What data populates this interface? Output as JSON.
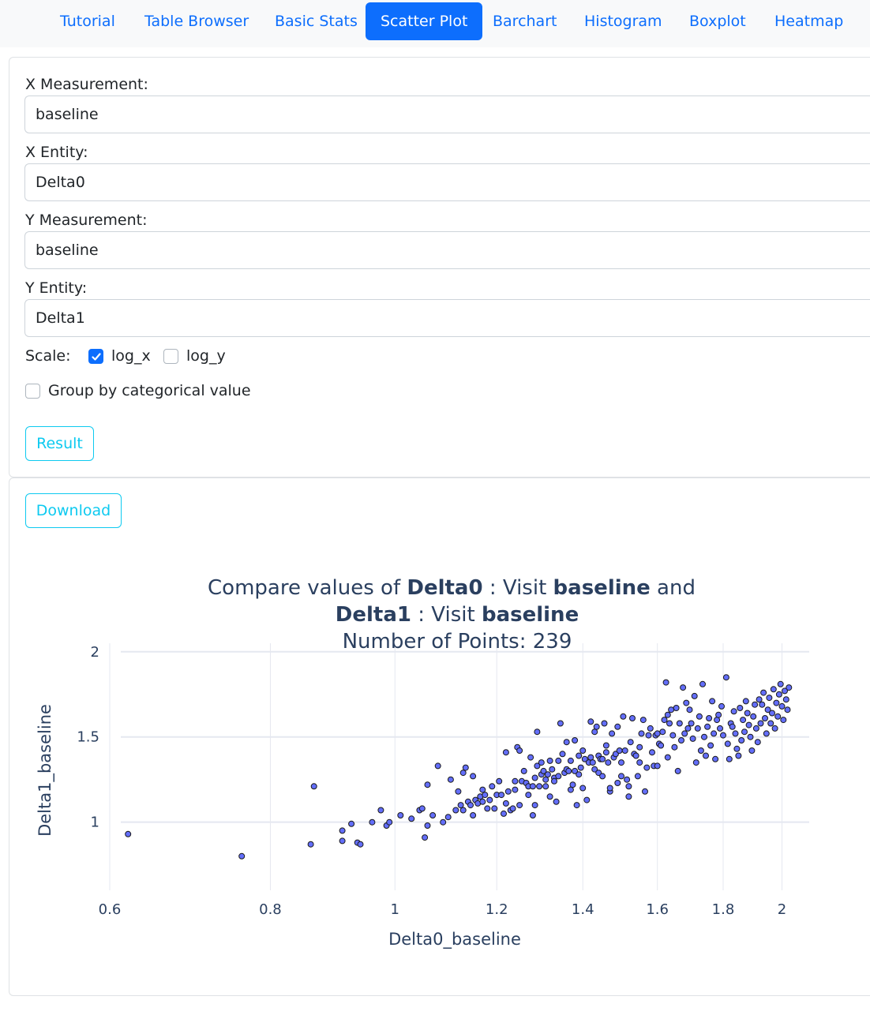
{
  "nav": {
    "tabs": [
      {
        "label": "Tutorial"
      },
      {
        "label": "Table Browser"
      },
      {
        "label": "Basic Stats"
      },
      {
        "label": "Scatter Plot"
      },
      {
        "label": "Barchart"
      },
      {
        "label": "Histogram"
      },
      {
        "label": "Boxplot"
      },
      {
        "label": "Heatmap"
      }
    ],
    "active": "Scatter Plot"
  },
  "form": {
    "x_measurement": {
      "label": "X Measurement:",
      "value": "baseline"
    },
    "x_entity": {
      "label": "X Entity:",
      "value": "Delta0"
    },
    "y_measurement": {
      "label": "Y Measurement:",
      "value": "baseline"
    },
    "y_entity": {
      "label": "Y Entity:",
      "value": "Delta1"
    },
    "scale": {
      "label": "Scale:",
      "log_x": {
        "label": "log_x",
        "checked": true
      },
      "log_y": {
        "label": "log_y",
        "checked": false
      }
    },
    "group_by": {
      "label": "Group by categorical value",
      "checked": false
    },
    "result_button": "Result"
  },
  "plot_panel": {
    "download_button": "Download"
  },
  "chart_data": {
    "type": "scatter",
    "title": {
      "line1_prefix": "Compare values of ",
      "line1_entity": "Delta0",
      "line1_mid": " : Visit ",
      "line1_visit": "baseline",
      "line1_suffix": " and",
      "line2_entity": "Delta1",
      "line2_mid": " : Visit ",
      "line2_visit": "baseline",
      "line3": "Number of Points: 239"
    },
    "xlabel": "Delta0_baseline",
    "ylabel": "Delta1_baseline",
    "x_scale": "log",
    "y_scale": "linear",
    "xlim": [
      0.6,
      2.1
    ],
    "ylim": [
      0.6,
      2.05
    ],
    "x_ticks": [
      0.6,
      0.8,
      1,
      1.2,
      1.4,
      1.6,
      1.8,
      2
    ],
    "x_tick_labels": [
      "0.6",
      "0.8",
      "1",
      "1.2",
      "1.4",
      "1.6",
      "1.8",
      "2"
    ],
    "y_ticks": [
      1,
      1.5,
      2
    ],
    "y_tick_labels": [
      "1",
      "1.5",
      "2"
    ],
    "grid": true,
    "marker_color": "#636efa",
    "marker_edge": "#1a1a1a",
    "points": [
      [
        0.62,
        0.93
      ],
      [
        0.76,
        0.8
      ],
      [
        0.86,
        0.87
      ],
      [
        0.865,
        1.21
      ],
      [
        0.91,
        0.89
      ],
      [
        0.91,
        0.95
      ],
      [
        0.925,
        0.99
      ],
      [
        0.935,
        0.88
      ],
      [
        0.94,
        0.87
      ],
      [
        0.96,
        1.0
      ],
      [
        0.975,
        1.07
      ],
      [
        0.985,
        0.98
      ],
      [
        0.99,
        1.0
      ],
      [
        1.01,
        1.04
      ],
      [
        1.03,
        1.02
      ],
      [
        1.045,
        1.07
      ],
      [
        1.05,
        1.08
      ],
      [
        1.055,
        0.91
      ],
      [
        1.06,
        1.22
      ],
      [
        1.06,
        0.98
      ],
      [
        1.07,
        1.04
      ],
      [
        1.08,
        1.33
      ],
      [
        1.09,
        1.0
      ],
      [
        1.1,
        1.03
      ],
      [
        1.105,
        1.25
      ],
      [
        1.115,
        1.07
      ],
      [
        1.12,
        1.18
      ],
      [
        1.125,
        1.1
      ],
      [
        1.13,
        1.07
      ],
      [
        1.13,
        1.29
      ],
      [
        1.135,
        1.32
      ],
      [
        1.14,
        1.12
      ],
      [
        1.145,
        1.1
      ],
      [
        1.15,
        1.27
      ],
      [
        1.15,
        1.04
      ],
      [
        1.155,
        1.13
      ],
      [
        1.16,
        1.11
      ],
      [
        1.165,
        1.15
      ],
      [
        1.17,
        1.12
      ],
      [
        1.17,
        1.19
      ],
      [
        1.175,
        1.16
      ],
      [
        1.18,
        1.08
      ],
      [
        1.185,
        1.13
      ],
      [
        1.19,
        1.21
      ],
      [
        1.195,
        1.08
      ],
      [
        1.2,
        1.16
      ],
      [
        1.205,
        1.24
      ],
      [
        1.21,
        1.16
      ],
      [
        1.215,
        1.05
      ],
      [
        1.22,
        1.11
      ],
      [
        1.22,
        1.41
      ],
      [
        1.225,
        1.18
      ],
      [
        1.23,
        1.07
      ],
      [
        1.235,
        1.08
      ],
      [
        1.24,
        1.19
      ],
      [
        1.24,
        1.24
      ],
      [
        1.245,
        1.44
      ],
      [
        1.25,
        1.42
      ],
      [
        1.25,
        1.1
      ],
      [
        1.255,
        1.24
      ],
      [
        1.26,
        1.3
      ],
      [
        1.265,
        1.23
      ],
      [
        1.27,
        1.21
      ],
      [
        1.27,
        1.16
      ],
      [
        1.275,
        1.38
      ],
      [
        1.28,
        1.04
      ],
      [
        1.28,
        1.21
      ],
      [
        1.285,
        1.26
      ],
      [
        1.285,
        1.1
      ],
      [
        1.29,
        1.33
      ],
      [
        1.29,
        1.53
      ],
      [
        1.295,
        1.21
      ],
      [
        1.3,
        1.35
      ],
      [
        1.3,
        1.28
      ],
      [
        1.305,
        1.3
      ],
      [
        1.31,
        1.21
      ],
      [
        1.31,
        1.25
      ],
      [
        1.315,
        1.28
      ],
      [
        1.32,
        1.15
      ],
      [
        1.32,
        1.36
      ],
      [
        1.325,
        1.31
      ],
      [
        1.33,
        1.26
      ],
      [
        1.33,
        1.24
      ],
      [
        1.335,
        1.12
      ],
      [
        1.34,
        1.36
      ],
      [
        1.34,
        1.27
      ],
      [
        1.345,
        1.58
      ],
      [
        1.35,
        1.4
      ],
      [
        1.355,
        1.29
      ],
      [
        1.36,
        1.31
      ],
      [
        1.36,
        1.47
      ],
      [
        1.365,
        1.3
      ],
      [
        1.37,
        1.19
      ],
      [
        1.37,
        1.36
      ],
      [
        1.375,
        1.22
      ],
      [
        1.38,
        1.48
      ],
      [
        1.38,
        1.3
      ],
      [
        1.385,
        1.1
      ],
      [
        1.39,
        1.39
      ],
      [
        1.39,
        1.28
      ],
      [
        1.395,
        1.32
      ],
      [
        1.4,
        1.2
      ],
      [
        1.4,
        1.42
      ],
      [
        1.405,
        1.37
      ],
      [
        1.41,
        1.13
      ],
      [
        1.415,
        1.35
      ],
      [
        1.42,
        1.59
      ],
      [
        1.42,
        1.38
      ],
      [
        1.425,
        1.35
      ],
      [
        1.43,
        1.53
      ],
      [
        1.43,
        1.31
      ],
      [
        1.435,
        1.56
      ],
      [
        1.44,
        1.39
      ],
      [
        1.44,
        1.29
      ],
      [
        1.445,
        1.37
      ],
      [
        1.45,
        1.27
      ],
      [
        1.45,
        1.37
      ],
      [
        1.455,
        1.58
      ],
      [
        1.46,
        1.41
      ],
      [
        1.46,
        1.45
      ],
      [
        1.465,
        1.35
      ],
      [
        1.47,
        1.18
      ],
      [
        1.47,
        1.2
      ],
      [
        1.475,
        1.52
      ],
      [
        1.48,
        1.38
      ],
      [
        1.485,
        1.4
      ],
      [
        1.49,
        1.56
      ],
      [
        1.49,
        1.23
      ],
      [
        1.495,
        1.42
      ],
      [
        1.5,
        1.35
      ],
      [
        1.5,
        1.27
      ],
      [
        1.505,
        1.62
      ],
      [
        1.51,
        1.42
      ],
      [
        1.515,
        1.25
      ],
      [
        1.52,
        1.21
      ],
      [
        1.52,
        1.15
      ],
      [
        1.525,
        1.47
      ],
      [
        1.53,
        1.61
      ],
      [
        1.535,
        1.4
      ],
      [
        1.54,
        1.39
      ],
      [
        1.545,
        1.27
      ],
      [
        1.55,
        1.35
      ],
      [
        1.55,
        1.44
      ],
      [
        1.555,
        1.52
      ],
      [
        1.56,
        1.6
      ],
      [
        1.565,
        1.18
      ],
      [
        1.57,
        1.32
      ],
      [
        1.575,
        1.51
      ],
      [
        1.58,
        1.55
      ],
      [
        1.585,
        1.41
      ],
      [
        1.59,
        1.33
      ],
      [
        1.595,
        1.51
      ],
      [
        1.6,
        1.33
      ],
      [
        1.6,
        1.52
      ],
      [
        1.605,
        1.46
      ],
      [
        1.61,
        1.45
      ],
      [
        1.615,
        1.53
      ],
      [
        1.62,
        1.6
      ],
      [
        1.625,
        1.82
      ],
      [
        1.63,
        1.63
      ],
      [
        1.63,
        1.38
      ],
      [
        1.635,
        1.58
      ],
      [
        1.64,
        1.66
      ],
      [
        1.645,
        1.51
      ],
      [
        1.65,
        1.44
      ],
      [
        1.655,
        1.67
      ],
      [
        1.66,
        1.3
      ],
      [
        1.665,
        1.58
      ],
      [
        1.67,
        1.48
      ],
      [
        1.675,
        1.79
      ],
      [
        1.68,
        1.52
      ],
      [
        1.685,
        1.7
      ],
      [
        1.69,
        1.55
      ],
      [
        1.695,
        1.66
      ],
      [
        1.7,
        1.58
      ],
      [
        1.705,
        1.49
      ],
      [
        1.71,
        1.74
      ],
      [
        1.715,
        1.35
      ],
      [
        1.72,
        1.55
      ],
      [
        1.725,
        1.62
      ],
      [
        1.73,
        1.42
      ],
      [
        1.735,
        1.81
      ],
      [
        1.74,
        1.5
      ],
      [
        1.745,
        1.39
      ],
      [
        1.75,
        1.56
      ],
      [
        1.755,
        1.61
      ],
      [
        1.76,
        1.45
      ],
      [
        1.765,
        1.71
      ],
      [
        1.77,
        1.52
      ],
      [
        1.775,
        1.37
      ],
      [
        1.78,
        1.6
      ],
      [
        1.785,
        1.63
      ],
      [
        1.79,
        1.55
      ],
      [
        1.795,
        1.68
      ],
      [
        1.8,
        1.51
      ],
      [
        1.81,
        1.85
      ],
      [
        1.815,
        1.46
      ],
      [
        1.82,
        1.37
      ],
      [
        1.825,
        1.58
      ],
      [
        1.83,
        1.56
      ],
      [
        1.835,
        1.65
      ],
      [
        1.84,
        1.52
      ],
      [
        1.845,
        1.43
      ],
      [
        1.85,
        1.39
      ],
      [
        1.855,
        1.67
      ],
      [
        1.86,
        1.48
      ],
      [
        1.865,
        1.6
      ],
      [
        1.87,
        1.53
      ],
      [
        1.875,
        1.71
      ],
      [
        1.88,
        1.64
      ],
      [
        1.885,
        1.57
      ],
      [
        1.89,
        1.5
      ],
      [
        1.895,
        1.42
      ],
      [
        1.9,
        1.62
      ],
      [
        1.905,
        1.69
      ],
      [
        1.91,
        1.55
      ],
      [
        1.915,
        1.47
      ],
      [
        1.92,
        1.72
      ],
      [
        1.925,
        1.58
      ],
      [
        1.93,
        1.69
      ],
      [
        1.935,
        1.76
      ],
      [
        1.94,
        1.61
      ],
      [
        1.945,
        1.52
      ],
      [
        1.95,
        1.66
      ],
      [
        1.955,
        1.73
      ],
      [
        1.96,
        1.58
      ],
      [
        1.965,
        1.64
      ],
      [
        1.97,
        1.78
      ],
      [
        1.975,
        1.55
      ],
      [
        1.98,
        1.7
      ],
      [
        1.985,
        1.62
      ],
      [
        1.99,
        1.75
      ],
      [
        1.995,
        1.81
      ],
      [
        2.0,
        1.68
      ],
      [
        2.005,
        1.6
      ],
      [
        2.01,
        1.77
      ],
      [
        2.015,
        1.72
      ],
      [
        2.02,
        1.66
      ],
      [
        2.025,
        1.79
      ]
    ]
  }
}
